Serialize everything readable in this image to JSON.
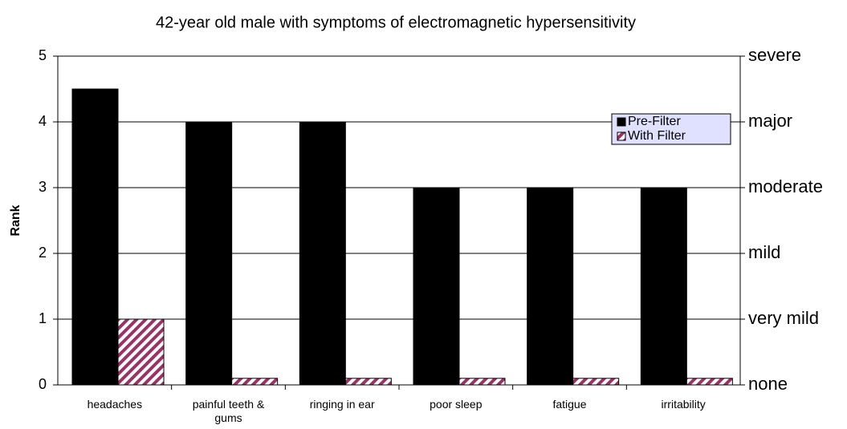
{
  "chart_data": {
    "type": "bar",
    "title": "42-year old male with symptoms of electromagnetic hypersensitivity",
    "ylabel": "Rank",
    "categories": [
      "headaches",
      "painful teeth & gums",
      "ringing in ear",
      "poor sleep",
      "fatigue",
      "irritability"
    ],
    "series": [
      {
        "name": "Pre-Filter",
        "color": "#000000",
        "values": [
          4.5,
          4,
          4,
          3,
          3,
          3
        ]
      },
      {
        "name": "With Filter",
        "color": "#993366",
        "hatch": true,
        "values": [
          1,
          0.1,
          0.1,
          0.1,
          0.1,
          0.1
        ]
      }
    ],
    "ylim": [
      0,
      5
    ],
    "yticks": [
      0,
      1,
      2,
      3,
      4,
      5
    ],
    "y2lim": [
      0,
      5
    ],
    "y2ticks": [
      {
        "value": 0,
        "label": "none"
      },
      {
        "value": 1,
        "label": "very mild"
      },
      {
        "value": 2,
        "label": "mild"
      },
      {
        "value": 3,
        "label": "moderate"
      },
      {
        "value": 4,
        "label": "major"
      },
      {
        "value": 5,
        "label": "severe"
      }
    ],
    "grid": true,
    "legend": "upper right"
  }
}
